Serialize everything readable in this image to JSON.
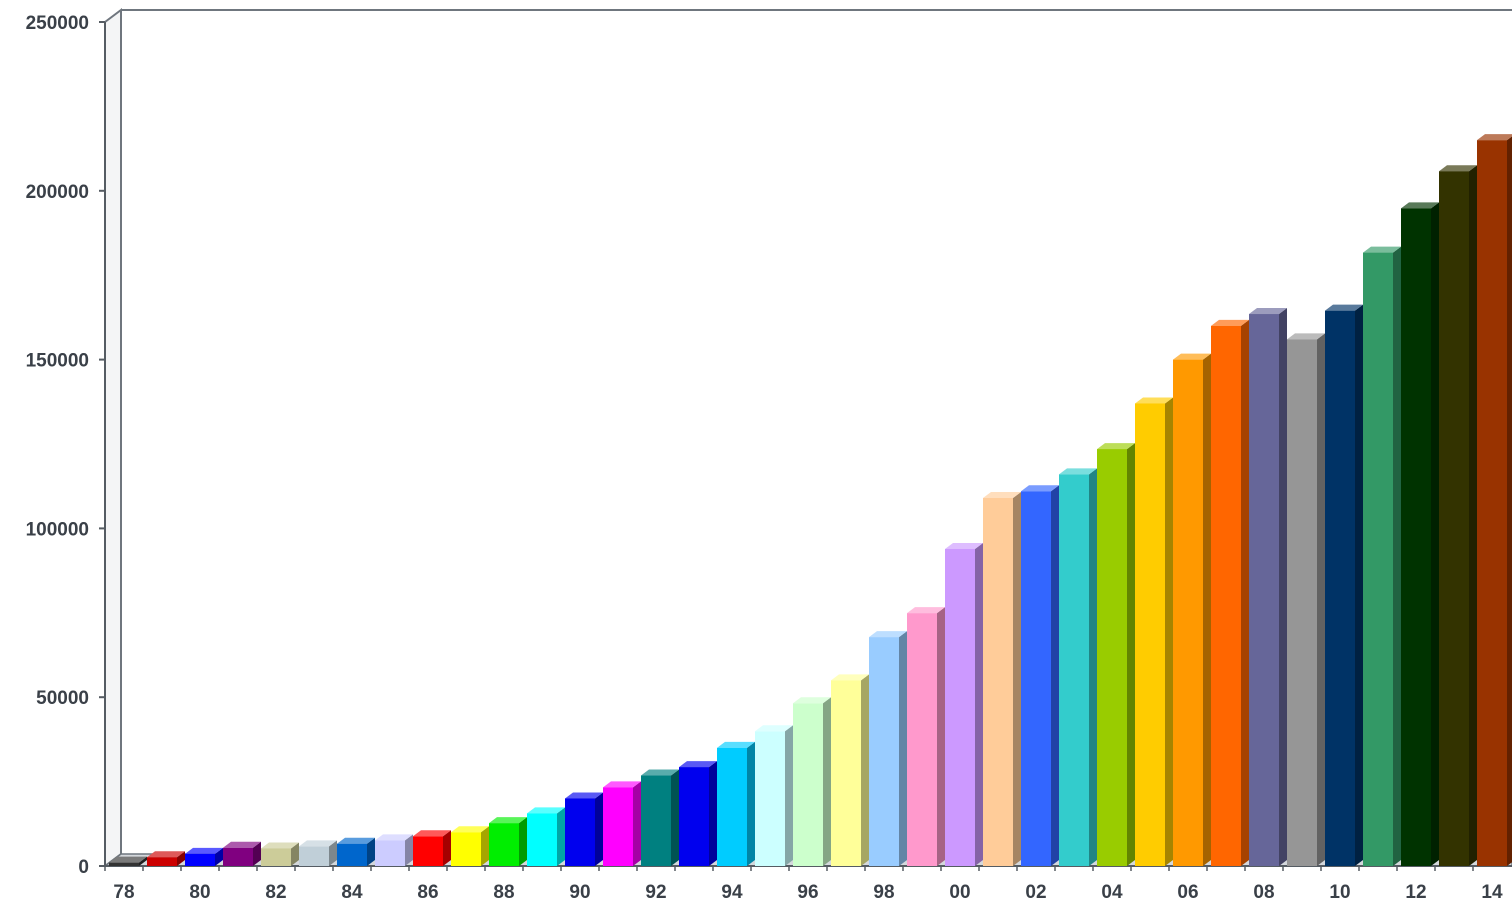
{
  "chart_data": {
    "type": "bar",
    "title": "",
    "xlabel": "",
    "ylabel": "",
    "ylim": [
      0,
      250000
    ],
    "yticks": [
      0,
      50000,
      100000,
      150000,
      200000,
      250000
    ],
    "ytick_labels": [
      "0",
      "50000",
      "100000",
      "150000",
      "200000",
      "250000"
    ],
    "grid": false,
    "legend": "none",
    "style": "3d-columns",
    "categories": [
      "78",
      "79",
      "80",
      "81",
      "82",
      "83",
      "84",
      "85",
      "86",
      "87",
      "88",
      "89",
      "90",
      "91",
      "92",
      "93",
      "94",
      "95",
      "96",
      "97",
      "98",
      "99",
      "00",
      "01",
      "02",
      "03",
      "04",
      "05",
      "06",
      "07",
      "08",
      "09",
      "10",
      "11",
      "12",
      "13",
      "14"
    ],
    "xtick_labels": [
      "78",
      "80",
      "82",
      "84",
      "86",
      "88",
      "90",
      "92",
      "94",
      "96",
      "98",
      "00",
      "02",
      "04",
      "06",
      "08",
      "10",
      "12",
      "14"
    ],
    "values": [
      1000,
      2600,
      3600,
      5400,
      5200,
      5800,
      6600,
      7600,
      8800,
      10000,
      12700,
      15600,
      20000,
      23300,
      26800,
      29300,
      35000,
      39900,
      48200,
      55000,
      67800,
      74900,
      93900,
      109000,
      111000,
      116000,
      123500,
      137000,
      150000,
      160000,
      163500,
      156000,
      164500,
      181700,
      194800,
      205800,
      215000
    ],
    "colors": [
      "#333333",
      "#cc0000",
      "#0000ff",
      "#800080",
      "#cccc99",
      "#c0cfd8",
      "#0066cc",
      "#ccccff",
      "#ff0000",
      "#ffff00",
      "#00ee00",
      "#00ffff",
      "#0000ee",
      "#ff00ff",
      "#008080",
      "#0000ee",
      "#00ccff",
      "#ccffff",
      "#ccffcc",
      "#ffff99",
      "#99ccff",
      "#ff99cc",
      "#cc99ff",
      "#ffcc99",
      "#3366ff",
      "#33cccc",
      "#99cc00",
      "#ffcc00",
      "#ff9900",
      "#ff6600",
      "#666699",
      "#969696",
      "#003366",
      "#339966",
      "#003300",
      "#333300",
      "#993300"
    ]
  }
}
